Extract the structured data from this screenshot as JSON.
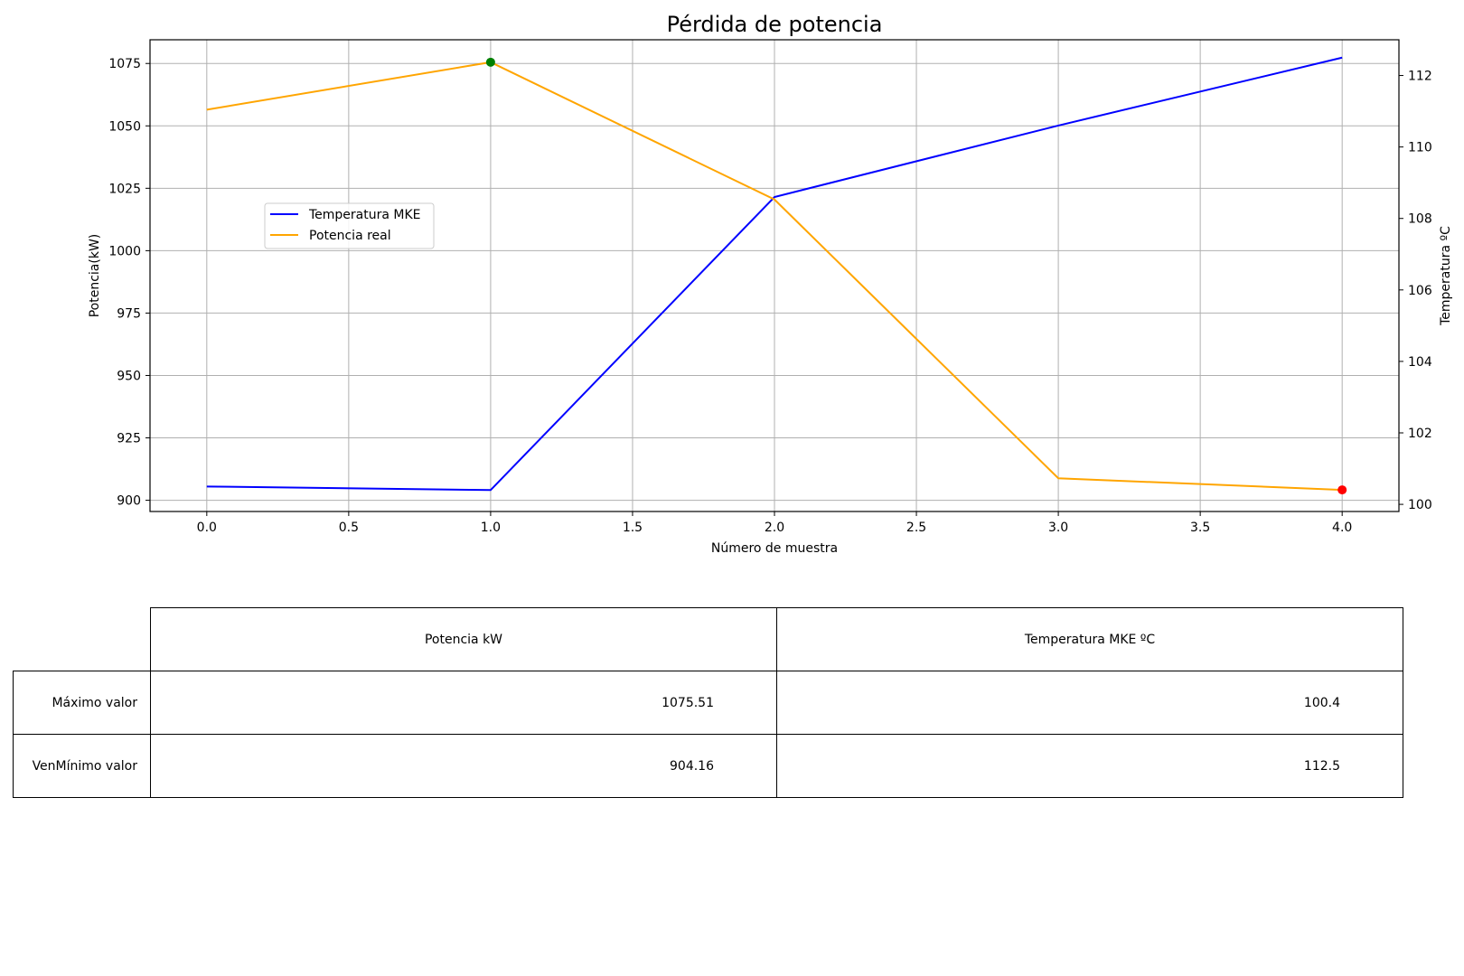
{
  "chart_data": {
    "type": "line",
    "title": "Pérdida de potencia",
    "xlabel": "Número de muestra",
    "ylabel": "Potencia(kW)",
    "y2label": "Temperatura ºC",
    "x": [
      0,
      1,
      2,
      3,
      4
    ],
    "xlim": [
      -0.2,
      4.2
    ],
    "xticks": [
      0.0,
      0.5,
      1.0,
      1.5,
      2.0,
      2.5,
      3.0,
      3.5,
      4.0
    ],
    "xtick_labels": [
      "0.0",
      "0.5",
      "1.0",
      "1.5",
      "2.0",
      "2.5",
      "3.0",
      "3.5",
      "4.0"
    ],
    "ylim": [
      895.5,
      1084.5
    ],
    "yticks": [
      900,
      925,
      950,
      975,
      1000,
      1025,
      1050,
      1075
    ],
    "y2lim": [
      99.8,
      113.0
    ],
    "y2ticks": [
      100,
      102,
      104,
      106,
      108,
      110,
      112
    ],
    "grid": true,
    "legend_position": "center-left",
    "series": [
      {
        "name": "Temperatura MKE",
        "axis": "right",
        "color": "#0000ff",
        "values": [
          100.5,
          100.4,
          108.6,
          110.6,
          112.5
        ]
      },
      {
        "name": "Potencia real",
        "axis": "left",
        "color": "#ffa500",
        "values": [
          1056.5,
          1075.51,
          1020.5,
          908.8,
          904.16
        ]
      }
    ],
    "markers": [
      {
        "series": "Potencia real",
        "x": 1,
        "y": 1075.51,
        "color": "#008000"
      },
      {
        "series": "Potencia real",
        "x": 4,
        "y": 904.16,
        "color": "#ff0000"
      }
    ]
  },
  "table": {
    "headers": [
      "Potencia kW",
      "Temperatura MKE ºC"
    ],
    "rows": [
      {
        "label": "Máximo valor",
        "values": [
          "1075.51",
          "100.4"
        ]
      },
      {
        "label": "VenMínimo valor",
        "values": [
          "904.16",
          "112.5"
        ]
      }
    ]
  }
}
